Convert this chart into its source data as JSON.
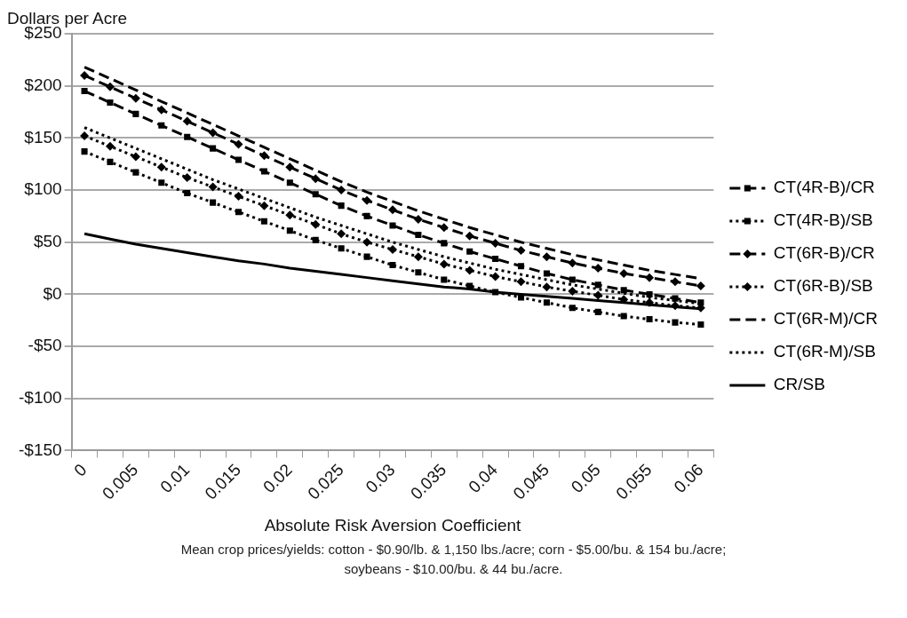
{
  "chart_data": {
    "type": "line",
    "ylabel": "Dollars per Acre",
    "xlabel": "Absolute Risk Aversion Coefficient",
    "categories": [
      "0",
      null,
      "0.005",
      null,
      "0.01",
      null,
      "0.015",
      null,
      "0.02",
      null,
      "0.025",
      null,
      "0.03",
      null,
      "0.035",
      null,
      "0.04",
      null,
      "0.045",
      null,
      "0.05",
      null,
      "0.055",
      null,
      "0.06"
    ],
    "series": [
      {
        "name": "CT(4R-B)/CR",
        "color": "#000000",
        "marker": "square",
        "line_style": "dashed",
        "values": [
          195,
          184,
          173,
          162,
          151,
          140,
          129,
          118,
          107,
          96,
          85,
          75,
          66,
          57,
          49,
          41,
          34,
          27,
          20,
          14,
          9,
          4,
          0,
          -4,
          -8
        ]
      },
      {
        "name": "CT(4R-B)/SB",
        "color": "#000000",
        "marker": "square",
        "line_style": "dotted",
        "values": [
          137,
          127,
          117,
          107,
          97,
          88,
          79,
          70,
          61,
          52,
          44,
          36,
          28,
          21,
          14,
          8,
          2,
          -3,
          -8,
          -13,
          -17,
          -21,
          -24,
          -27,
          -29
        ]
      },
      {
        "name": "CT(6R-B)/CR",
        "color": "#000000",
        "marker": "diamond",
        "line_style": "dashed",
        "values": [
          210,
          199,
          188,
          177,
          166,
          155,
          144,
          133,
          122,
          111,
          100,
          90,
          81,
          72,
          64,
          56,
          49,
          42,
          36,
          30,
          25,
          20,
          16,
          12,
          8
        ]
      },
      {
        "name": "CT(6R-B)/SB",
        "color": "#000000",
        "marker": "diamond",
        "line_style": "dotted",
        "values": [
          152,
          142,
          132,
          122,
          112,
          103,
          94,
          85,
          76,
          67,
          58,
          50,
          43,
          36,
          29,
          23,
          17,
          12,
          7,
          3,
          -1,
          -5,
          -8,
          -11,
          -13
        ]
      },
      {
        "name": "CT(6R-M)/CR",
        "color": "#000000",
        "marker": "none",
        "line_style": "dashed",
        "values": [
          218,
          207,
          196,
          185,
          174,
          163,
          152,
          141,
          130,
          119,
          108,
          98,
          89,
          80,
          72,
          64,
          57,
          50,
          44,
          38,
          33,
          28,
          23,
          19,
          15
        ]
      },
      {
        "name": "CT(6R-M)/SB",
        "color": "#000000",
        "marker": "none",
        "line_style": "dotted",
        "values": [
          160,
          150,
          140,
          130,
          120,
          110,
          101,
          92,
          83,
          74,
          66,
          58,
          50,
          43,
          36,
          30,
          24,
          19,
          14,
          9,
          5,
          1,
          -3,
          -6,
          -9
        ]
      },
      {
        "name": "CR/SB",
        "color": "#000000",
        "marker": "none",
        "line_style": "solid",
        "values": [
          58,
          53,
          48,
          44,
          40,
          36,
          32,
          29,
          25,
          22,
          19,
          16,
          13,
          10,
          7,
          5,
          2,
          0,
          -2,
          -4,
          -6,
          -8,
          -10,
          -12,
          -14
        ]
      }
    ],
    "ylim": [
      -150,
      250
    ],
    "yticks": [
      {
        "value": -150,
        "label": "-$150"
      },
      {
        "value": -100,
        "label": "-$100"
      },
      {
        "value": -50,
        "label": "-$50"
      },
      {
        "value": 0,
        "label": "$0"
      },
      {
        "value": 50,
        "label": "$50"
      },
      {
        "value": 100,
        "label": "$100"
      },
      {
        "value": 150,
        "label": "$150"
      },
      {
        "value": 200,
        "label": "$200"
      },
      {
        "value": 250,
        "label": "$250"
      }
    ],
    "grid": "y",
    "legend": "right",
    "annotations": [
      "Mean crop prices/yields: cotton - $0.90/lb. & 1,150 lbs./acre; corn - $5.00/bu. & 154 bu./acre;",
      "soybeans - $10.00/bu. & 44 bu./acre."
    ]
  }
}
